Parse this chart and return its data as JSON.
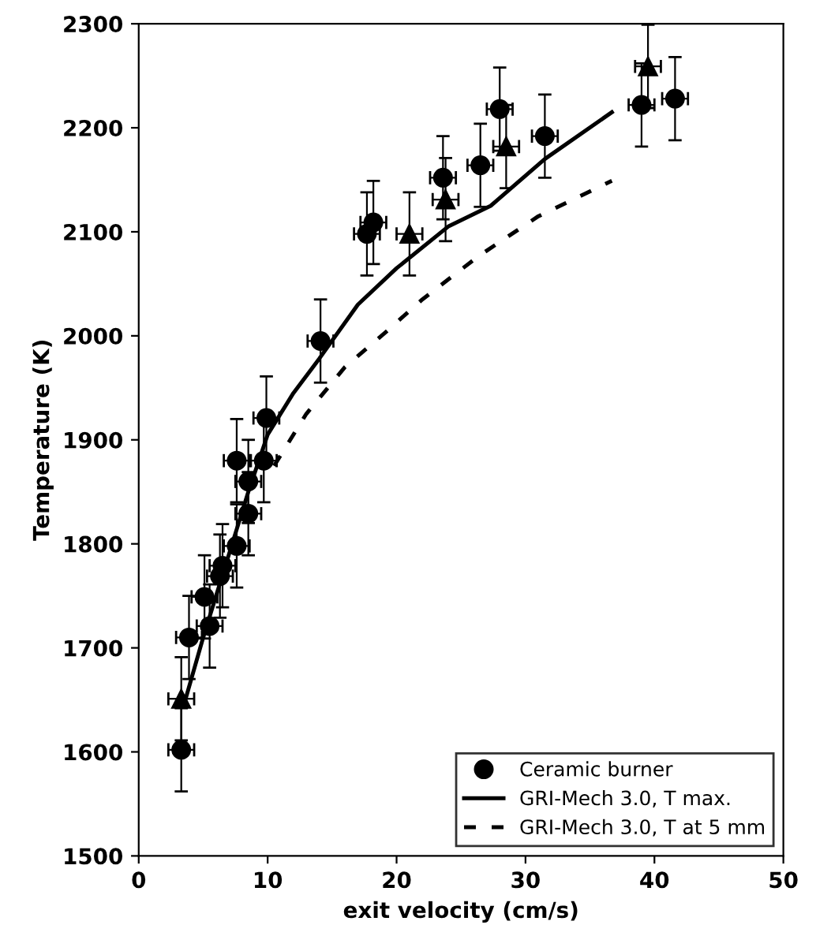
{
  "chart_data": {
    "type": "scatter",
    "xlabel": "exit velocity (cm/s)",
    "ylabel": "Temperature (K)",
    "xlim": [
      0,
      50
    ],
    "ylim": [
      1500,
      2300
    ],
    "xticks": [
      0,
      10,
      20,
      30,
      40,
      50
    ],
    "yticks": [
      1500,
      1600,
      1700,
      1800,
      1900,
      2000,
      2100,
      2200,
      2300
    ],
    "grid": false,
    "legend": "bottom right",
    "series": [
      {
        "marker": "triangle",
        "color": "#000000",
        "x": [
          3.3,
          21.0,
          23.8,
          28.5,
          39.5
        ],
        "values": [
          1651,
          2098,
          2131,
          2182,
          2259
        ],
        "errors": [
          40,
          40,
          40,
          40,
          40
        ],
        "xerrors": [
          1,
          1,
          1,
          1,
          1
        ]
      },
      {
        "name": "Ceramic burner",
        "marker": "circle",
        "color": "#000000",
        "x": [
          3.3,
          3.9,
          5.5,
          5.1,
          6.3,
          6.5,
          7.6,
          8.5,
          8.5,
          7.6,
          9.7,
          9.9,
          14.1,
          17.7,
          18.2,
          23.6,
          26.5,
          28.0,
          31.5,
          39.0,
          41.6
        ],
        "values": [
          1602,
          1710,
          1721,
          1749,
          1769,
          1779,
          1798,
          1829,
          1860,
          1880,
          1880,
          1921,
          1995,
          2098,
          2109,
          2152,
          2164,
          2218,
          2192,
          2222,
          2228
        ],
        "errors": [
          40,
          40,
          40,
          40,
          40,
          40,
          40,
          40,
          40,
          40,
          40,
          40,
          40,
          40,
          40,
          40,
          40,
          40,
          40,
          40,
          40
        ],
        "xerrors": [
          1,
          1,
          1,
          1,
          1,
          1,
          1,
          1,
          1,
          1,
          1,
          1,
          1,
          1,
          1,
          1,
          1,
          1,
          1,
          1,
          1
        ]
      },
      {
        "type": "line",
        "name": "GRI-Mech 3.0, T max.",
        "line_style": "solid",
        "marker": "none",
        "color": "#000000",
        "x": [
          3.5,
          5,
          7,
          8.5,
          10,
          12,
          14,
          17,
          20,
          24,
          27.3,
          31.5,
          36.7
        ],
        "values": [
          1645,
          1710,
          1790,
          1850,
          1905,
          1945,
          1978,
          2030,
          2065,
          2105,
          2125,
          2170,
          2215
        ]
      },
      {
        "type": "line",
        "name": "GRI-Mech 3.0, T at 5 mm",
        "line_style": "dashed",
        "marker": "none",
        "color": "#000000",
        "x": [
          10.5,
          13,
          16,
          19.2,
          22,
          26.4,
          31,
          36.7
        ],
        "values": [
          1875,
          1925,
          1970,
          2004,
          2035,
          2077,
          2115,
          2149
        ]
      }
    ]
  }
}
